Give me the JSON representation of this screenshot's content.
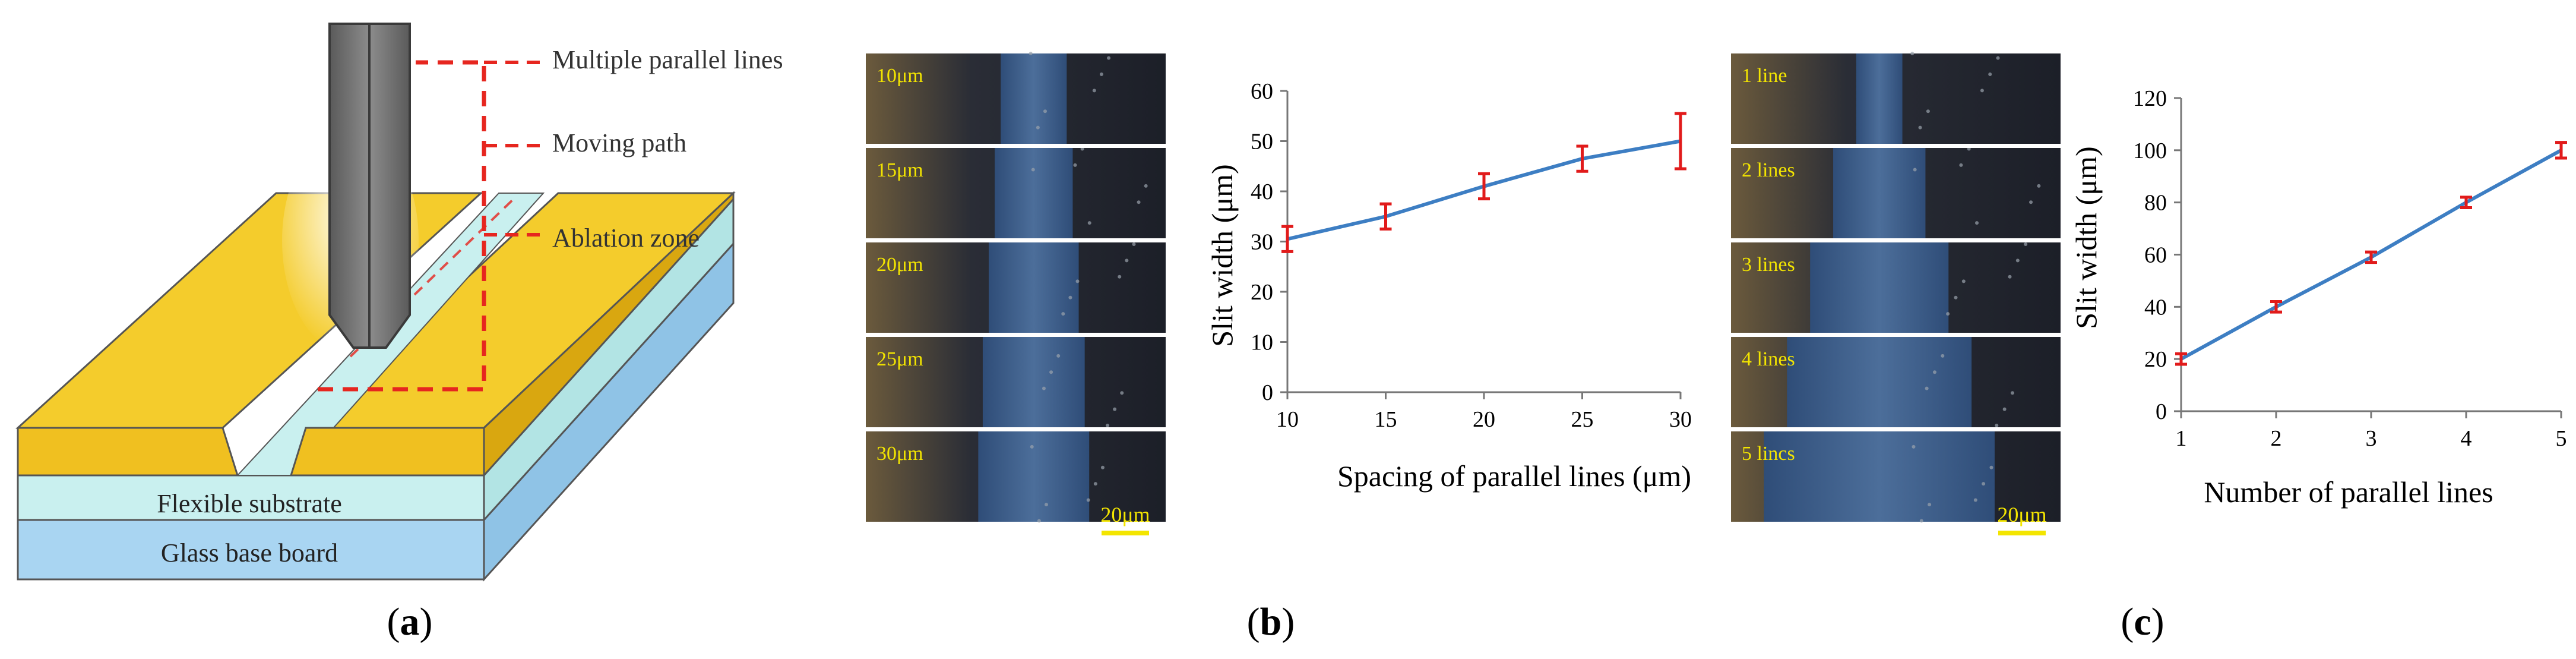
{
  "panel_a": {
    "label": "a",
    "callouts": [
      "Multiple parallel lines",
      "Moving path",
      "Ablation zone"
    ],
    "layers": {
      "substrate": "Flexible substrate",
      "base": "Glass base board"
    },
    "colors": {
      "gold": "#f4cc2c",
      "gold_side": "#d9a710",
      "substrate": "#c9f0ef",
      "base": "#a9d5f2",
      "callout": "#e6261f",
      "nozzle": "#6e6e6e"
    }
  },
  "panel_b": {
    "label": "b",
    "micrographs": [
      "10μm",
      "15μm",
      "20μm",
      "25μm",
      "30μm"
    ],
    "slit_ratio": [
      0.22,
      0.26,
      0.3,
      0.34,
      0.37
    ],
    "scale_bar": "20μm"
  },
  "panel_c": {
    "label": "c",
    "micrographs": [
      "1 line",
      "2 lines",
      "3 lines",
      "4 lines",
      "5 lincs"
    ],
    "slit_ratio": [
      0.14,
      0.28,
      0.42,
      0.56,
      0.7
    ],
    "scale_bar": "20μm"
  },
  "chart_data": [
    {
      "type": "line",
      "title": "",
      "xlabel": "Spacing of parallel lines  (μm)",
      "ylabel": "Slit width (μm)",
      "x": [
        10,
        15,
        20,
        25,
        30
      ],
      "x_ticks": [
        "10",
        "15",
        "20",
        "25",
        "30"
      ],
      "y_ticks": [
        "0",
        "10",
        "20",
        "30",
        "40",
        "50",
        "60"
      ],
      "values": [
        30.5,
        35,
        41,
        46.5,
        50
      ],
      "error": [
        2.5,
        2.5,
        2.5,
        2.5,
        5.5
      ],
      "xlim": [
        10,
        30
      ],
      "ylim": [
        0,
        60
      ],
      "grid": false,
      "line_color": "#3d7ec3",
      "error_color": "#e11b1b"
    },
    {
      "type": "line",
      "title": "",
      "xlabel": "Number of parallel lines",
      "ylabel": "Slit width (μm)",
      "x": [
        1,
        2,
        3,
        4,
        5
      ],
      "x_ticks": [
        "1",
        "2",
        "3",
        "4",
        "5"
      ],
      "y_ticks": [
        "0",
        "20",
        "40",
        "60",
        "80",
        "100",
        "120"
      ],
      "values": [
        20,
        40,
        59,
        80,
        100
      ],
      "error": [
        2,
        2,
        2,
        2,
        3
      ],
      "xlim": [
        1,
        5
      ],
      "ylim": [
        0,
        120
      ],
      "grid": false,
      "line_color": "#3d7ec3",
      "error_color": "#e11b1b"
    }
  ]
}
